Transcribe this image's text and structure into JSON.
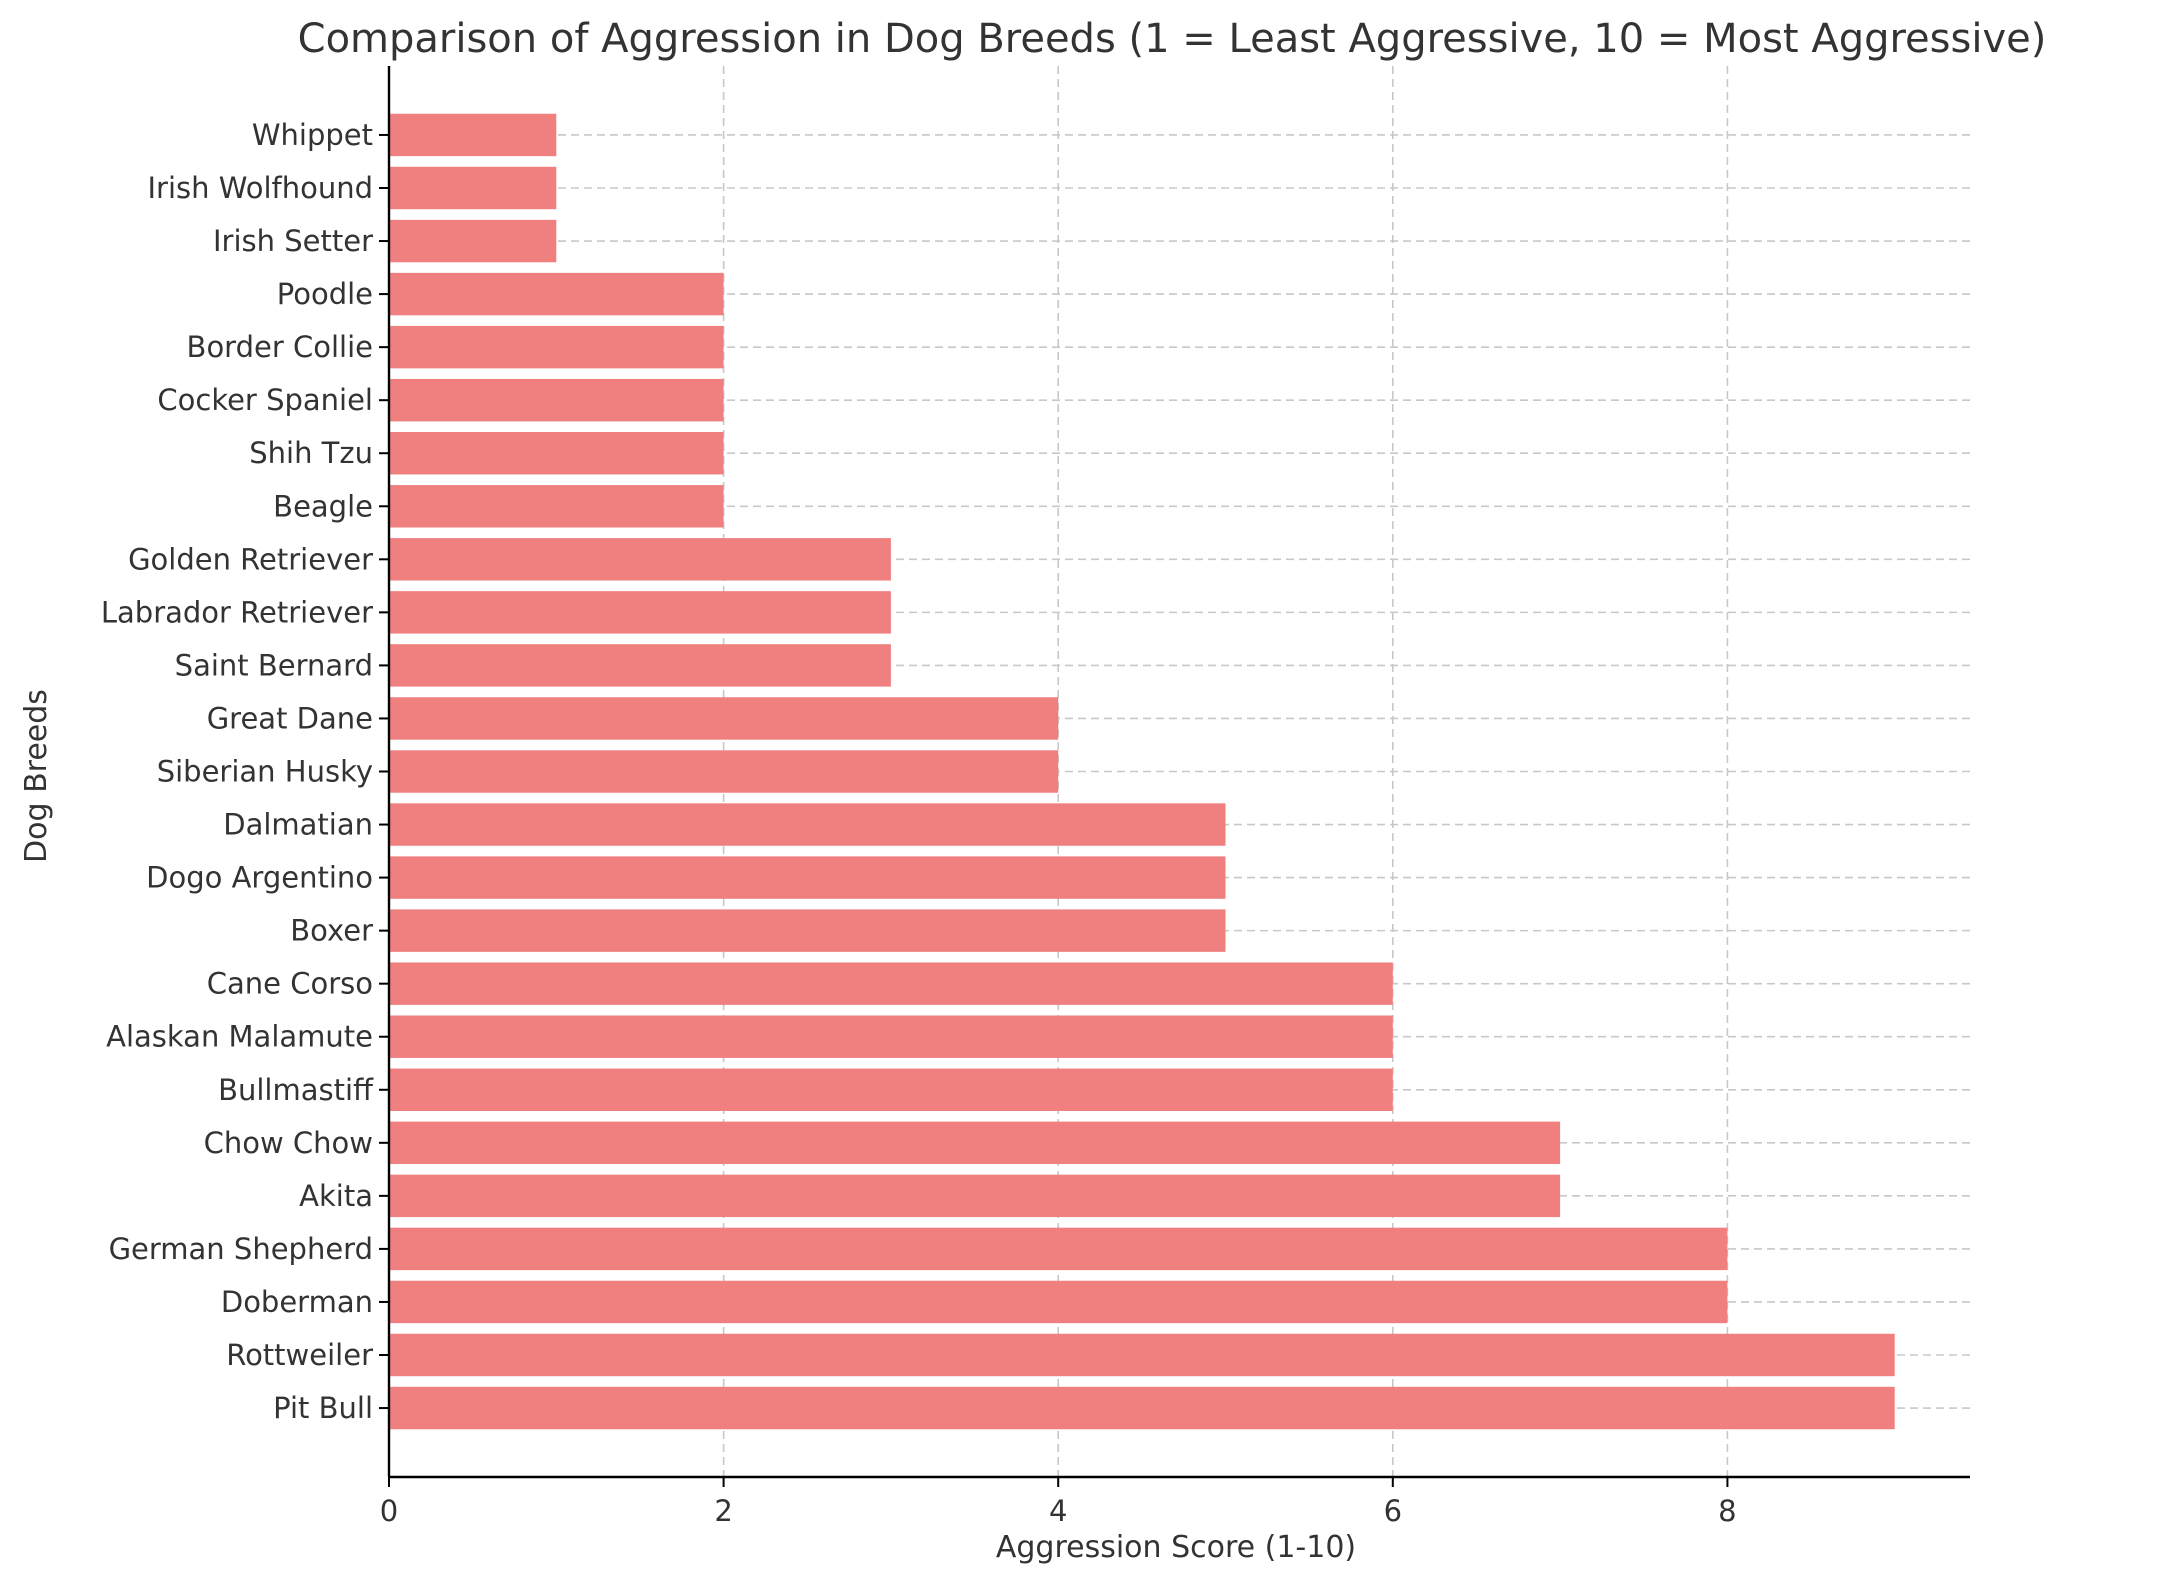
{
  "chart_data": {
    "type": "bar",
    "orientation": "horizontal",
    "title": "Comparison of Aggression in Dog Breeds (1 = Least Aggressive, 10 = Most Aggressive)",
    "xlabel": "Aggression Score (1-10)",
    "ylabel": "Dog Breeds",
    "xlim": [
      0,
      9.45
    ],
    "xticks": [
      0,
      2,
      4,
      6,
      8
    ],
    "grid": true,
    "bar_color": "#f08080",
    "categories": [
      "Pit Bull",
      "Rottweiler",
      "Doberman",
      "German Shepherd",
      "Akita",
      "Chow Chow",
      "Bullmastiff",
      "Alaskan Malamute",
      "Cane Corso",
      "Boxer",
      "Dogo Argentino",
      "Dalmatian",
      "Siberian Husky",
      "Great Dane",
      "Saint Bernard",
      "Labrador Retriever",
      "Golden Retriever",
      "Beagle",
      "Shih Tzu",
      "Cocker Spaniel",
      "Border Collie",
      "Poodle",
      "Irish Setter",
      "Irish Wolfhound",
      "Whippet"
    ],
    "values": [
      9,
      9,
      8,
      8,
      7,
      7,
      6,
      6,
      6,
      5,
      5,
      5,
      4,
      4,
      3,
      3,
      3,
      2,
      2,
      2,
      2,
      2,
      1,
      1,
      1
    ]
  }
}
